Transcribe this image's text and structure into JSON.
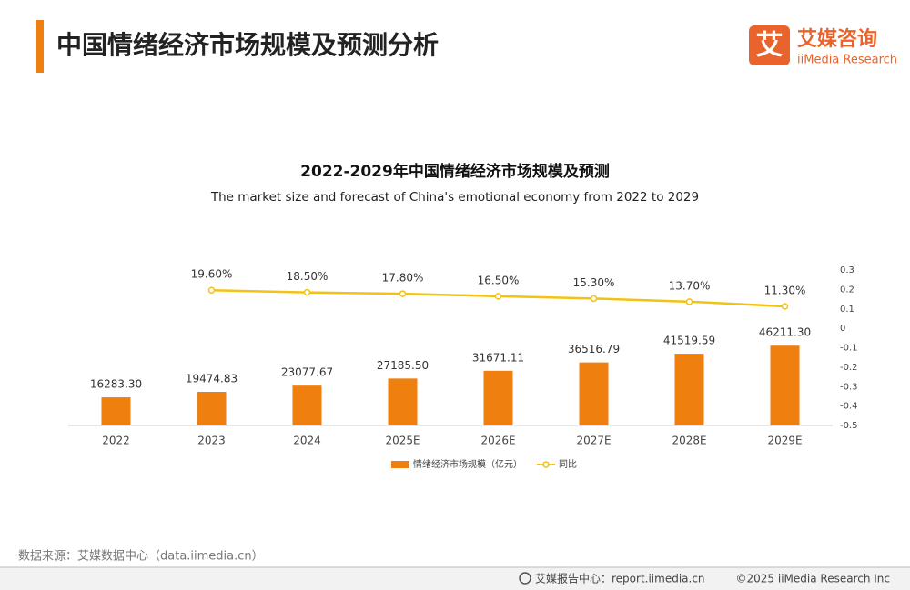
{
  "header": {
    "title": "中国情绪经济市场规模及预测分析",
    "logo_mark": "艾",
    "logo_name": "艾媒咨询",
    "logo_subname": "iiMedia Research"
  },
  "chart_data": {
    "type": "bar",
    "title": "2022-2029年中国情绪经济市场规模及预测",
    "subtitle": "The market size and forecast of China's emotional economy from 2022 to 2029",
    "categories": [
      "2022",
      "2023",
      "2024",
      "2025E",
      "2026E",
      "2027E",
      "2028E",
      "2029E"
    ],
    "series": [
      {
        "name": "情绪经济市场规模（亿元）",
        "type": "bar",
        "color": "#ef7f0f",
        "values": [
          16283.3,
          19474.83,
          23077.67,
          27185.5,
          31671.11,
          36516.79,
          41519.59,
          46211.3
        ],
        "value_labels": [
          "16283.30",
          "19474.83",
          "23077.67",
          "27185.50",
          "31671.11",
          "36516.79",
          "41519.59",
          "46211.30"
        ]
      },
      {
        "name": "同比",
        "type": "line",
        "axis": "y2",
        "color": "#f2c314",
        "values": [
          null,
          0.196,
          0.185,
          0.178,
          0.165,
          0.153,
          0.137,
          0.113
        ],
        "value_labels": [
          null,
          "19.60%",
          "18.50%",
          "17.80%",
          "16.50%",
          "15.30%",
          "13.70%",
          "11.30%"
        ]
      }
    ],
    "ylim": [
      0,
      90000
    ],
    "y2lim": [
      -0.5,
      0.3
    ],
    "y2ticks": [
      0.3,
      0.2,
      0.1,
      0,
      -0.1,
      -0.2,
      -0.3,
      -0.4,
      -0.5
    ],
    "legend": "bottom"
  },
  "source": "数据来源：艾媒数据中心（data.iimedia.cn）",
  "footer": {
    "report_center": "艾媒报告中心：report.iimedia.cn",
    "copyright": "©2025 iiMedia Research Inc"
  }
}
